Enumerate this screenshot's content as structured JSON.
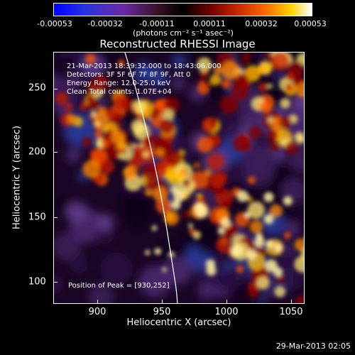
{
  "colorbar": {
    "ticks": [
      "-0.00053",
      "-0.00032",
      "-0.00011",
      "0.00011",
      "0.00032",
      "0.00053"
    ],
    "unit_label": "(photons cm⁻² s⁻¹ asec⁻²)"
  },
  "title": "Reconstructed RHESSI Image",
  "info": {
    "line1": "21-Mar-2013 18:39:32.000 to 18:43:06.000",
    "line2": "Detectors: 3F 5F 6F 7F 8F 9F, Att 0",
    "line3": "Energy Range: 12.0-25.0 keV",
    "line4": "Clean     Total counts: 1.07E+04"
  },
  "peak_label": "Position of Peak = [930,252]",
  "axes": {
    "xlabel": "Heliocentric X (arcsec)",
    "ylabel": "Heliocentric Y (arcsec)",
    "xticks": [
      "900",
      "950",
      "1000",
      "1050"
    ],
    "yticks": [
      "250",
      "200",
      "150",
      "100"
    ]
  },
  "footer_date": "29-Mar-2013 02:05",
  "colors": {
    "background": "#000000",
    "text": "#ffffff",
    "limb_line": "#ffffff"
  }
}
